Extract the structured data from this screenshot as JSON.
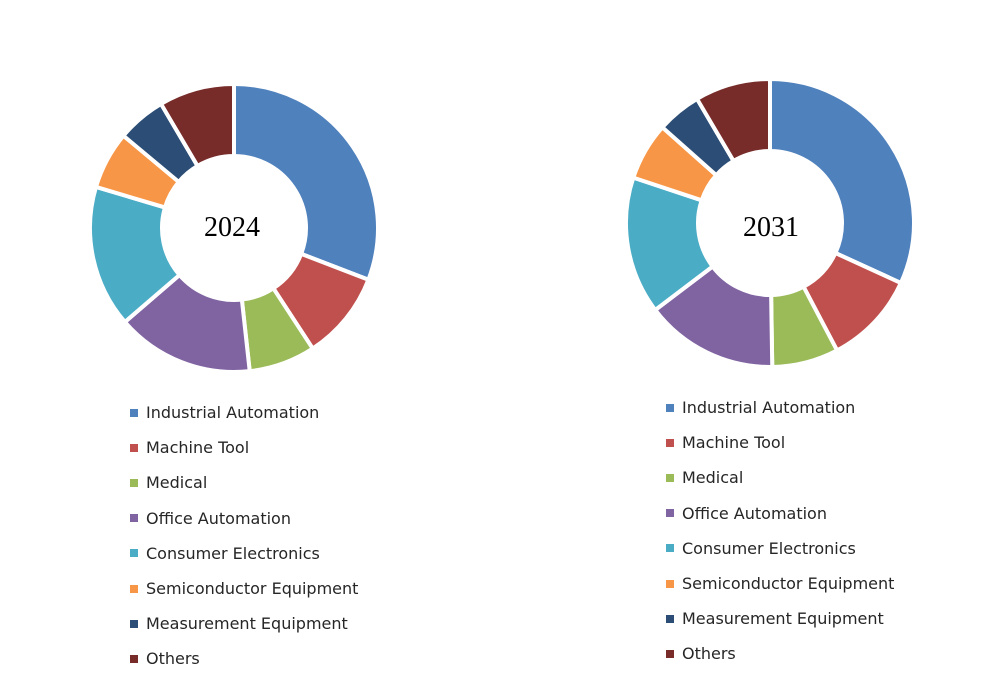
{
  "chart_data": [
    {
      "type": "pie",
      "variant": "donut",
      "title": "2024",
      "categories": [
        "Industrial Automation",
        "Machine Tool",
        "Medical",
        "Office Automation",
        "Consumer Electronics",
        "Semiconductor Equipment",
        "Measurement Equipment",
        "Others"
      ],
      "values": [
        31,
        10,
        7.5,
        15.5,
        16,
        6.5,
        5.5,
        8.5
      ],
      "colors": [
        "#4F81BD",
        "#C0504D",
        "#9BBB59",
        "#8064A2",
        "#4BACC6",
        "#F79646",
        "#2C4D75",
        "#772C2A"
      ],
      "legend_position": "bottom"
    },
    {
      "type": "pie",
      "variant": "donut",
      "title": "2031",
      "categories": [
        "Industrial Automation",
        "Machine Tool",
        "Medical",
        "Office Automation",
        "Consumer Electronics",
        "Semiconductor Equipment",
        "Measurement Equipment",
        "Others"
      ],
      "values": [
        32,
        10.5,
        7.5,
        15,
        15.5,
        6.5,
        5,
        8.5
      ],
      "colors": [
        "#4F81BD",
        "#C0504D",
        "#9BBB59",
        "#8064A2",
        "#4BACC6",
        "#F79646",
        "#2C4D75",
        "#772C2A"
      ],
      "legend_position": "bottom"
    }
  ]
}
